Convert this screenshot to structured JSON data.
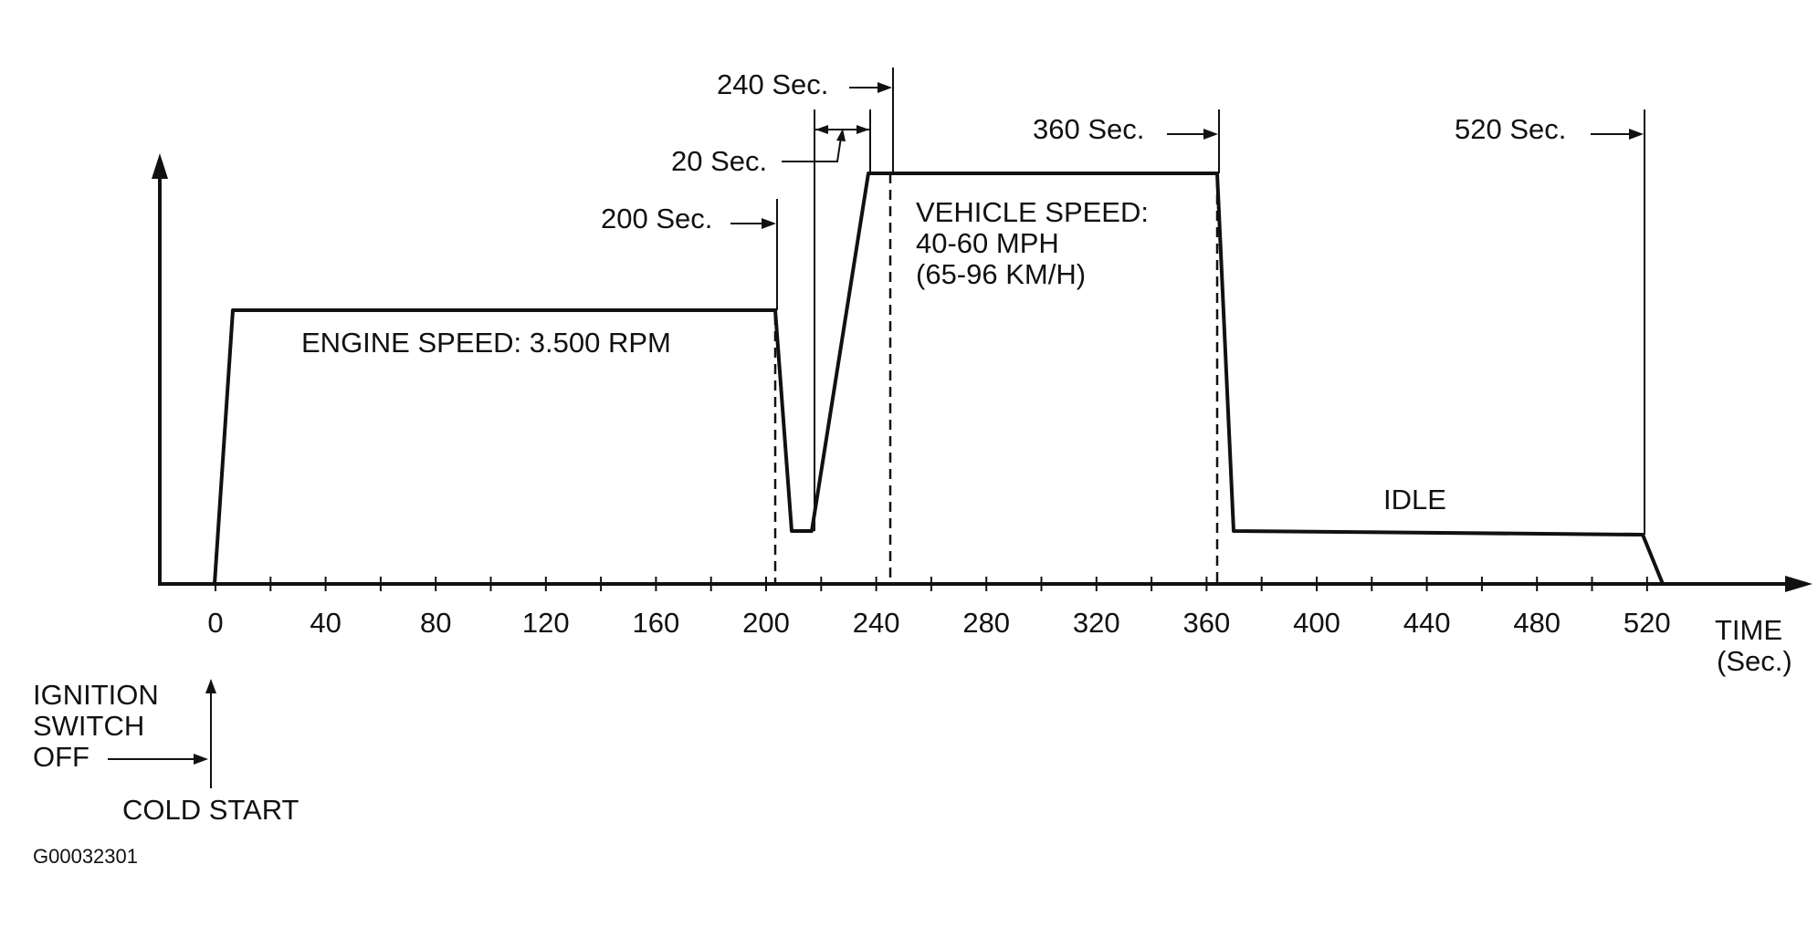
{
  "figure_code": "G00032301",
  "axis": {
    "x_label_line1": "TIME",
    "x_label_line2": "(Sec.)",
    "ticks": [
      "0",
      "40",
      "80",
      "120",
      "160",
      "200",
      "240",
      "280",
      "320",
      "360",
      "400",
      "440",
      "480",
      "520"
    ]
  },
  "annotations": {
    "engine_speed": "ENGINE SPEED: 3.500 RPM",
    "vehicle_speed_line1": "VEHICLE SPEED:",
    "vehicle_speed_line2": "40-60 MPH",
    "vehicle_speed_line3": "(65-96 KM/H)",
    "idle": "IDLE",
    "sec_200": "200 Sec.",
    "sec_20": "20 Sec.",
    "sec_240": "240 Sec.",
    "sec_360": "360 Sec.",
    "sec_520": "520 Sec."
  },
  "ignition": {
    "line1": "IGNITION",
    "line2": "SWITCH",
    "line3": "OFF",
    "cold_start": "COLD START"
  }
}
